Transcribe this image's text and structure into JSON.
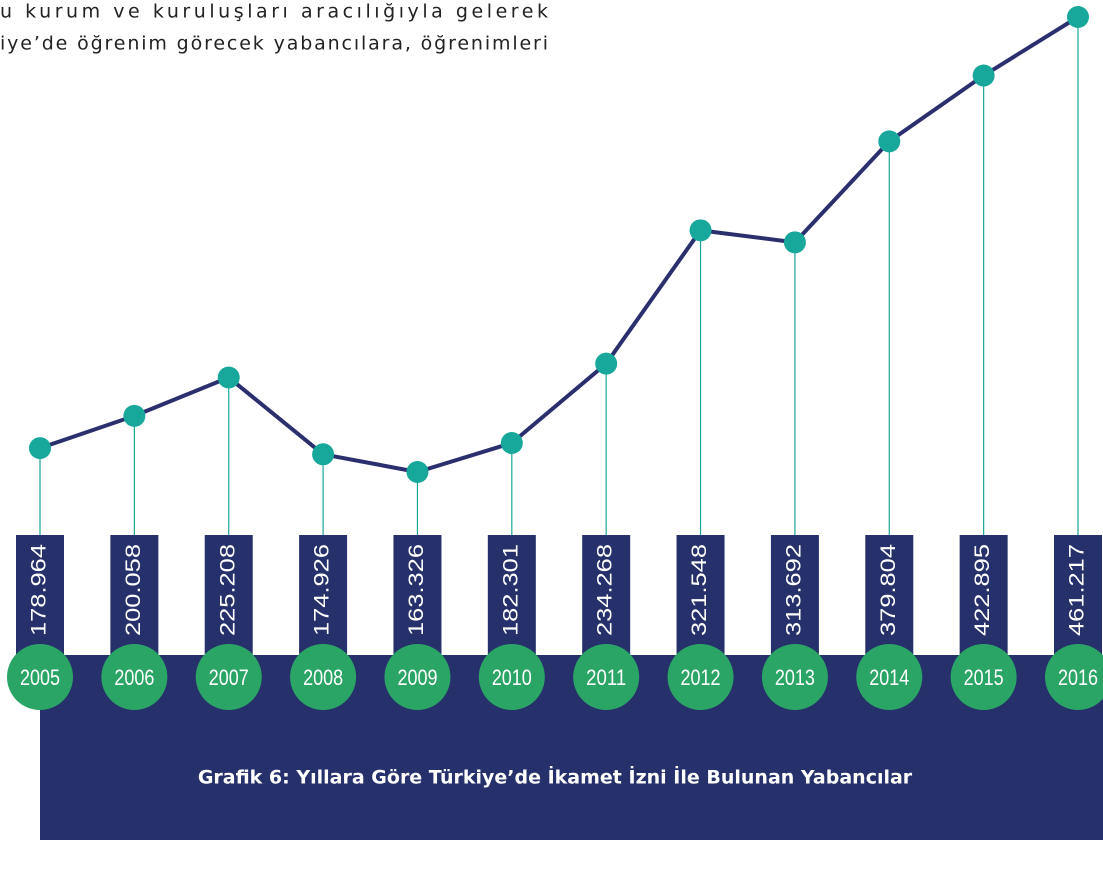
{
  "page_text": [
    "u kurum ve kuruluşları aracılığıyla gelerek",
    "iye’de öğrenim görecek yabancılara, öğrenimleri"
  ],
  "chart_data": {
    "type": "line",
    "title": "Grafik 6: Yıllara Göre Türkiye’de İkamet İzni İle Bulunan Yabancılar",
    "categories": [
      "2005",
      "2006",
      "2007",
      "2008",
      "2009",
      "2010",
      "2011",
      "2012",
      "2013",
      "2014",
      "2015",
      "2016"
    ],
    "values": [
      178964,
      200058,
      225208,
      174926,
      163326,
      182301,
      234268,
      321548,
      313692,
      379804,
      422895,
      461217
    ],
    "value_labels": [
      "178.964",
      "200.058",
      "225.208",
      "174.926",
      "163.326",
      "182.301",
      "234.268",
      "321.548",
      "313.692",
      "379.804",
      "422.895",
      "461.217"
    ],
    "color": "#2b2f6e",
    "marker_color": "#17a89b",
    "bar_color": "#26306a",
    "year_color": "#2aa566"
  }
}
